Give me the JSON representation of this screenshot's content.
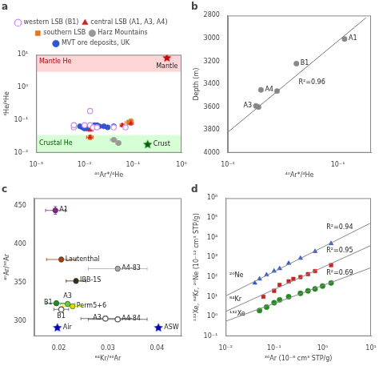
{
  "chart_data": [
    {
      "type": "scatter",
      "title": "a",
      "xlabel": "⁴⁰Ar*/⁴He",
      "ylabel": "³He/⁴He",
      "log": true,
      "grid": false,
      "legend": "top",
      "xlim": [
        0.001,
        1
      ],
      "ylim": [
        0.01,
        10
      ],
      "xticks": [
        {
          "value": 0.001,
          "label": "10⁻³"
        },
        {
          "value": 0.01,
          "label": "10⁻²"
        },
        {
          "value": 0.1,
          "label": "10⁻¹"
        },
        {
          "value": 1,
          "label": "10⁰"
        }
      ],
      "yticks": [
        {
          "value": 0.01,
          "label": "10⁻²"
        },
        {
          "value": 0.1,
          "label": "10⁻¹"
        },
        {
          "value": 1,
          "label": "10⁰"
        },
        {
          "value": 10,
          "label": "10¹"
        }
      ],
      "bands": [
        {
          "y": [
            3.0,
            10.0
          ],
          "color": "#ffcccc"
        },
        {
          "y": [
            0.01,
            0.035
          ],
          "color": "#ccffcc"
        }
      ],
      "series": [
        {
          "name": "western LSB (B1)",
          "marker": "open_circle",
          "color": "#cc88ff",
          "x": [
            0.006,
            0.006,
            0.01,
            0.013,
            0.013,
            0.015,
            0.018,
            0.04,
            0.07
          ],
          "values": [
            0.06,
            0.07,
            0.07,
            0.07,
            0.19,
            0.06,
            0.06,
            0.06,
            0.06
          ]
        },
        {
          "name": "central LSB (A1, A3, A4)",
          "marker": "triangle",
          "color": "#cc2222",
          "x": [
            0.013,
            0.013,
            0.06,
            0.09
          ],
          "values": [
            0.03,
            0.05,
            0.07,
            0.08
          ],
          "xerr": [
            0.002,
            0.002,
            0.006,
            0.012
          ],
          "yerr": [
            0.004,
            0.004,
            0.008,
            0.01
          ]
        },
        {
          "name": "southern LSB",
          "marker": "square",
          "color": "#e07722",
          "x": [
            0.013,
            0.08,
            0.09
          ],
          "values": [
            0.03,
            0.085,
            0.095
          ],
          "xerr": [
            0.002,
            0.012,
            0.012
          ],
          "yerr": [
            0.005,
            0.012,
            0.012
          ]
        },
        {
          "name": "Harz Mountains",
          "marker": "circle",
          "color": "#999999",
          "x": [
            0.04,
            0.05
          ],
          "values": [
            0.025,
            0.02
          ],
          "xerr": [
            0.006,
            0.006
          ],
          "yerr": [
            0.003,
            0.003
          ]
        },
        {
          "name": "MVT ore deposits, UK",
          "marker": "circle",
          "color": "#3355cc",
          "x": [
            0.006,
            0.008,
            0.009,
            0.01,
            0.012,
            0.013,
            0.014,
            0.016,
            0.018,
            0.02,
            0.025,
            0.03,
            0.04
          ],
          "values": [
            0.07,
            0.065,
            0.06,
            0.055,
            0.055,
            0.06,
            0.065,
            0.07,
            0.07,
            0.065,
            0.065,
            0.06,
            0.065
          ]
        },
        {
          "marker": "star",
          "color": "#cc0000",
          "x": [
            0.5
          ],
          "values": [
            8.0
          ],
          "labels": [
            "Mantle"
          ]
        },
        {
          "marker": "star",
          "color": "#006600",
          "x": [
            0.2
          ],
          "values": [
            0.018
          ],
          "labels": [
            "Crust"
          ]
        }
      ],
      "annotations": [
        {
          "text": "Mantle He",
          "x": 0.00115,
          "y": 6.0,
          "color": "#990000"
        },
        {
          "text": "Crustal He",
          "x": 0.00115,
          "y": 0.013,
          "color": "#005500"
        }
      ]
    },
    {
      "type": "scatter",
      "title": "b",
      "xlabel": "⁴⁰Ar*/⁴He",
      "ylabel": "Depth (m)",
      "log": "x",
      "grid": false,
      "xlim": [
        0.01,
        0.2
      ],
      "ylim": [
        4000,
        2800
      ],
      "xticks": [
        {
          "value": 0.01,
          "label": "10⁻²"
        },
        {
          "value": 0.1,
          "label": "10⁻¹"
        }
      ],
      "yticks": [
        2800,
        3000,
        3200,
        3400,
        3600,
        3800,
        4000
      ],
      "series": [
        {
          "type": "line",
          "color": "#777777",
          "x": [
            0.01,
            0.18
          ],
          "values": [
            3820,
            2820
          ]
        },
        {
          "marker": "circle",
          "color": "#888888",
          "x": [
            0.115,
            0.042,
            0.02,
            0.028,
            0.018,
            0.019
          ],
          "values": [
            3005,
            3220,
            3450,
            3460,
            3590,
            3600
          ],
          "labels": [
            "A1",
            "B1",
            "A4",
            null,
            "A3",
            null
          ]
        }
      ],
      "annotations": [
        {
          "text": "R²=0.96",
          "x": 0.044,
          "y": 3390
        }
      ]
    },
    {
      "type": "scatter",
      "title": "c",
      "xlabel": "⁸⁴Kr/³⁶Ar",
      "ylabel": "⁴⁰Ar/³⁶Ar",
      "grid": false,
      "xlim": [
        0.015,
        0.045
      ],
      "ylim": [
        280,
        460
      ],
      "xticks": [
        0.02,
        0.03,
        0.04
      ],
      "yticks": [
        300,
        350,
        400,
        450
      ],
      "series": [
        {
          "marker": "circle",
          "colors": [
            "#882288",
            "#994411",
            "#3a2a10",
            "#aaaaaa",
            "#228B22",
            "#66cc44",
            "#dddd00"
          ],
          "x": [
            0.0193,
            0.0205,
            0.0235,
            0.032,
            0.0195,
            0.0218,
            0.0228
          ],
          "values": [
            444,
            380,
            352,
            368,
            323,
            322,
            319
          ],
          "xerr": [
            0.002,
            0.003,
            0.002,
            0.006,
            0.002,
            0.0015,
            0.002
          ],
          "yerr": [
            5,
            3,
            3,
            3,
            3,
            3,
            3
          ],
          "labels": [
            "A1",
            "Lautenthal",
            "IBB-1S",
            "A4-83",
            "B1",
            "A3",
            "Perm5+6"
          ]
        },
        {
          "marker": "open_circle",
          "color": "#555555",
          "x": [
            0.0205,
            0.0295,
            0.032
          ],
          "values": [
            315,
            303,
            302
          ],
          "xerr": [
            0.0015,
            0.005,
            0.006
          ],
          "yerr": [
            3,
            3,
            3
          ],
          "labels": [
            "B1",
            "A3",
            "A4-84"
          ]
        },
        {
          "marker": "star",
          "color": "#0000bb",
          "x": [
            0.0197,
            0.0403
          ],
          "values": [
            291,
            291
          ],
          "labels": [
            "Air",
            "ASW"
          ]
        }
      ]
    },
    {
      "type": "scatter",
      "title": "d",
      "xlabel": "³⁶Ar (10⁻⁸ cm³ STP/g)",
      "ylabel": "¹³²Xe, ⁸⁴Kr, ²⁰Ne (10⁻¹² cm³ STP/g)",
      "log": true,
      "grid": false,
      "xlim": [
        0.01,
        10
      ],
      "ylim": [
        0.1,
        1000000
      ],
      "xticks": [
        {
          "value": 0.01,
          "label": "10⁻²"
        },
        {
          "value": 0.1,
          "label": "10⁻¹"
        },
        {
          "value": 1,
          "label": "10⁰"
        },
        {
          "value": 10,
          "label": "10¹"
        }
      ],
      "yticks": [
        {
          "value": 0.1,
          "label": "10⁻¹"
        },
        {
          "value": 1,
          "label": "10⁰"
        },
        {
          "value": 10,
          "label": "10¹"
        },
        {
          "value": 100,
          "label": "10²"
        },
        {
          "value": 1000,
          "label": "10³"
        },
        {
          "value": 10000,
          "label": "10⁴"
        },
        {
          "value": 100000,
          "label": "10⁵"
        },
        {
          "value": 1000000,
          "label": "10⁶"
        }
      ],
      "series": [
        {
          "type": "line",
          "color": "#888888",
          "x": [
            0.01,
            10
          ],
          "values": [
            10.94,
            55788
          ]
        },
        {
          "marker": "triangle",
          "color": "#3355cc",
          "x": [
            0.04,
            0.05,
            0.07,
            0.1,
            0.13,
            0.2,
            0.35,
            0.7,
            1.5
          ],
          "values": [
            50,
            80,
            130,
            200,
            270,
            500,
            900,
            2000,
            5000
          ]
        },
        {
          "type": "line",
          "color": "#888888",
          "x": [
            0.01,
            10
          ],
          "values": [
            1.793,
            4006
          ]
        },
        {
          "marker": "square",
          "color": "#cc2222",
          "x": [
            0.06,
            0.1,
            0.13,
            0.2,
            0.25,
            0.35,
            0.5,
            0.7,
            1.5
          ],
          "values": [
            10,
            20,
            40,
            60,
            80,
            100,
            140,
            200,
            400
          ]
        },
        {
          "type": "line",
          "color": "#888888",
          "x": [
            0.01,
            10
          ],
          "values": [
            0.5713,
            296.3
          ]
        },
        {
          "marker": "circle",
          "color": "#228B22",
          "x": [
            0.05,
            0.07,
            0.1,
            0.13,
            0.2,
            0.35,
            0.5,
            0.7,
            1.0,
            1.5
          ],
          "values": [
            2,
            3,
            5,
            7,
            10,
            15,
            20,
            25,
            35,
            50
          ]
        }
      ],
      "annotations": [
        {
          "text": "R²=0.94",
          "x": 1.2,
          "y": 30000
        },
        {
          "text": "R²=0.95",
          "x": 1.2,
          "y": 2000
        },
        {
          "text": "R²=0.69",
          "x": 1.2,
          "y": 150
        },
        {
          "text": "²⁰Ne",
          "x": 0.012,
          "y": 120
        },
        {
          "text": "⁸⁴Kr",
          "x": 0.012,
          "y": 7
        },
        {
          "text": "¹³²Xe",
          "x": 0.012,
          "y": 1.3
        }
      ]
    }
  ]
}
